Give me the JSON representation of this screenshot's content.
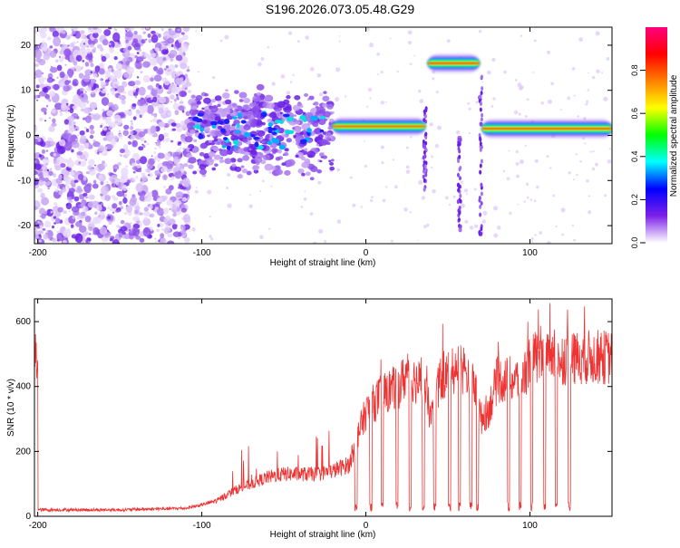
{
  "title": "S196.2026.073.05.48.G29",
  "chart_data": [
    {
      "type": "heatmap",
      "name": "spectrogram",
      "xlabel": "Height of straight line (km)",
      "ylabel": "Frequency (Hz)",
      "xlim": [
        -202,
        150
      ],
      "ylim": [
        -24,
        24
      ],
      "x_ticks": [
        -200,
        -100,
        0,
        100
      ],
      "y_ticks": [
        -20,
        -10,
        0,
        10,
        20
      ],
      "colorbar": {
        "label": "Normalized spectral amplitude",
        "range": [
          0,
          1
        ],
        "ticks": [
          "0.0",
          "0.2",
          "0.4",
          "0.6",
          "0.8"
        ],
        "tick_values": [
          0,
          0.2,
          0.4,
          0.6,
          0.8
        ],
        "colors": [
          "#ffffff",
          "#7b20e8",
          "#0000ff",
          "#00ffff",
          "#00ff00",
          "#ffff00",
          "#ff8000",
          "#ff0000",
          "#ff0080"
        ]
      },
      "segments": [
        {
          "region": "noise",
          "x_range": [
            -202,
            -108
          ],
          "freq_hz": 0,
          "amplitude": 0.15
        },
        {
          "region": "weak signal",
          "x_range": [
            -108,
            -20
          ],
          "freq_hz": 1,
          "amplitude": 0.3
        },
        {
          "region": "carrier",
          "x_range": [
            -20,
            36
          ],
          "freq_hz": 2,
          "amplitude": 0.85
        },
        {
          "region": "carrier",
          "x_range": [
            38,
            69
          ],
          "freq_hz": 16,
          "amplitude": 0.9
        },
        {
          "region": "carrier",
          "x_range": [
            71,
            150
          ],
          "freq_hz": 1.5,
          "amplitude": 0.95
        }
      ]
    },
    {
      "type": "line",
      "name": "snr",
      "xlabel": "Height of straight line (km)",
      "ylabel": "SNR (10 * v/v)",
      "xlim": [
        -202,
        150
      ],
      "ylim": [
        0,
        670
      ],
      "x_ticks": [
        -200,
        -100,
        0,
        100
      ],
      "y_ticks": [
        0,
        200,
        400,
        600
      ],
      "color": "#ee3333",
      "series": [
        {
          "name": "SNR",
          "x": [
            -200,
            -150,
            -110,
            -100,
            -90,
            -80,
            -70,
            -60,
            -50,
            -40,
            -30,
            -20,
            -10,
            -5,
            0,
            5,
            10,
            15,
            20,
            25,
            30,
            35,
            40,
            45,
            50,
            55,
            60,
            65,
            70,
            75,
            80,
            85,
            90,
            95,
            100,
            105,
            110,
            115,
            120,
            125,
            130,
            135,
            140,
            145,
            150
          ],
          "y": [
            20,
            20,
            25,
            35,
            50,
            80,
            100,
            120,
            130,
            130,
            130,
            140,
            160,
            250,
            320,
            350,
            380,
            390,
            400,
            440,
            420,
            400,
            300,
            420,
            440,
            460,
            440,
            430,
            300,
            330,
            420,
            420,
            420,
            420,
            480,
            490,
            480,
            490,
            490,
            480,
            490,
            490,
            490,
            490,
            490
          ]
        }
      ],
      "dropouts_x": [
        -6,
        3,
        10,
        19,
        27,
        35,
        42,
        51,
        57,
        64,
        68,
        87,
        94,
        101,
        109,
        116,
        124
      ]
    }
  ]
}
